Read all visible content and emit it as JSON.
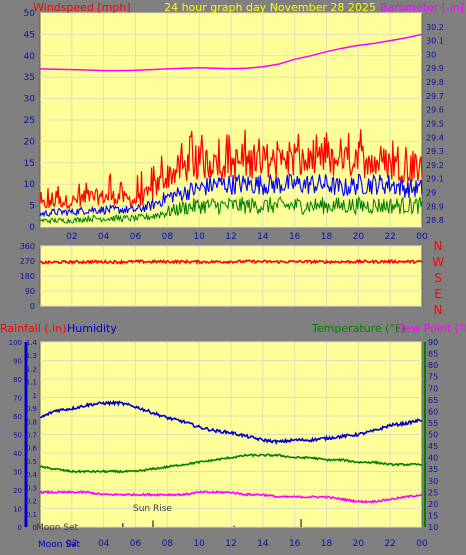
{
  "colors": {
    "background": "#808080",
    "plot_bg": "#ffff99",
    "grid": "#e0e0b8",
    "wind": "#ff0000",
    "gust_blue": "#0000ff",
    "wind_green": "#008000",
    "barometer": "#ff00ff",
    "title_yellow": "#ffff00",
    "humidity": "#0000cc",
    "temperature": "#008000",
    "dewpoint": "#ff00ff",
    "rainfall": "#ff0000",
    "sun_label": "#404040"
  },
  "chart_data": [
    {
      "type": "line",
      "title": "24 hour graph day   November 28 2025",
      "ylabel_left": "Windspeed [mph]",
      "ylabel_right": "Barometer [.in]",
      "x_ticks": [
        "02",
        "04",
        "06",
        "08",
        "10",
        "12",
        "14",
        "16",
        "18",
        "20",
        "22",
        "00"
      ],
      "ylim_left": [
        0,
        50
      ],
      "y_ticks_left": [
        "0",
        "5",
        "10",
        "15",
        "20",
        "25",
        "30",
        "35",
        "40",
        "45",
        "50"
      ],
      "ylim_right": [
        28.75,
        30.3
      ],
      "y_ticks_right": [
        "28.8",
        "28.9",
        "29",
        "29.1",
        "29.2",
        "29.3",
        "29.4",
        "29.5",
        "29.6",
        "29.7",
        "29.8",
        "29.9",
        "30",
        "30.1",
        "30.2"
      ],
      "x_hours": [
        0,
        1,
        2,
        3,
        4,
        5,
        6,
        7,
        8,
        9,
        10,
        11,
        12,
        13,
        14,
        15,
        16,
        17,
        18,
        19,
        20,
        21,
        22,
        23,
        24
      ],
      "series": [
        {
          "role": "wind_gust",
          "values": [
            5,
            6,
            6,
            7,
            7,
            7,
            6,
            8,
            12,
            14,
            15,
            15,
            15,
            15,
            16,
            15,
            15,
            15,
            16,
            15,
            16,
            15,
            15,
            14,
            13
          ],
          "peaks": [
            9,
            10,
            11,
            12,
            13,
            13,
            12,
            15,
            19,
            22,
            23,
            23,
            23,
            23,
            22,
            23,
            22,
            21,
            24,
            22,
            24,
            22,
            22,
            22,
            20
          ]
        },
        {
          "role": "wind_avg",
          "values": [
            3,
            3.5,
            3.5,
            4,
            4,
            4,
            4,
            5,
            7,
            8,
            9,
            10,
            10,
            10,
            10,
            10,
            10,
            10,
            10,
            9,
            10,
            10,
            10,
            9,
            9
          ]
        },
        {
          "role": "wind_low",
          "values": [
            1.5,
            1.5,
            1.5,
            2,
            2,
            2,
            2,
            2.5,
            3.5,
            4.5,
            5,
            5,
            5,
            5,
            5,
            5,
            5,
            5,
            5,
            5,
            5,
            5,
            5,
            5,
            5
          ]
        },
        {
          "role": "barometer",
          "values": [
            29.895,
            29.893,
            29.89,
            29.887,
            29.883,
            29.883,
            29.885,
            29.89,
            29.895,
            29.9,
            29.903,
            29.9,
            29.897,
            29.9,
            29.91,
            29.93,
            29.965,
            29.99,
            30.02,
            30.045,
            30.065,
            30.08,
            30.1,
            30.12,
            30.145
          ]
        }
      ]
    },
    {
      "type": "line",
      "ylabel_right": "NWSEN",
      "compass": [
        "N",
        "W",
        "S",
        "E",
        "N"
      ],
      "x_ticks": [
        "02",
        "04",
        "06",
        "08",
        "10",
        "12",
        "14",
        "16",
        "18",
        "20",
        "22",
        "00"
      ],
      "ylim": [
        0,
        360
      ],
      "y_ticks": [
        "0",
        "90",
        "180",
        "270",
        "360"
      ],
      "series": [
        {
          "role": "wind_direction",
          "values": [
            260,
            262,
            264,
            265,
            265,
            264,
            266,
            265,
            266,
            266,
            265,
            265,
            266,
            267,
            266,
            265,
            266,
            266,
            265,
            265,
            266,
            266,
            267,
            266,
            265
          ]
        }
      ]
    },
    {
      "type": "line",
      "labels": {
        "rainfall": "Rainfall (.in)",
        "humidity": "Humidity",
        "temperature": "Temperature (°F)",
        "dewpoint": "Dew Point (°F)"
      },
      "sun_rise_label": "Sun Rise",
      "moon_set_labels": [
        "Moon Set",
        "Moon Set"
      ],
      "x_ticks": [
        "02",
        "04",
        "06",
        "08",
        "10",
        "12",
        "14",
        "16",
        "18",
        "20",
        "22",
        "00"
      ],
      "ylim_humidity": [
        0,
        100
      ],
      "y_ticks_humidity": [
        "0",
        "10",
        "20",
        "30",
        "40",
        "50",
        "60",
        "70",
        "80",
        "90",
        "100"
      ],
      "ylim_rain": [
        0,
        1.4
      ],
      "y_ticks_rain": [
        "0",
        "0.1",
        "0.2",
        "0.3",
        "0.4",
        "0.5",
        "0.6",
        "0.7",
        "0.8",
        "0.9",
        "1",
        "1.1",
        "1.2",
        "1.3",
        "1.4"
      ],
      "ylim_temp": [
        10,
        90
      ],
      "y_ticks_temp": [
        "10",
        "15",
        "20",
        "25",
        "30",
        "35",
        "40",
        "45",
        "50",
        "55",
        "60",
        "65",
        "70",
        "75",
        "80",
        "85",
        "90"
      ],
      "sun_rise_hour": 7.1,
      "event_marks": [
        {
          "hour": 5.2,
          "height": 0.03
        },
        {
          "hour": 7.1,
          "height": 0.05
        },
        {
          "hour": 12.2,
          "height": 0.01
        },
        {
          "hour": 16.4,
          "height": 0.06
        }
      ],
      "series": [
        {
          "role": "humidity",
          "values": [
            59,
            63,
            64,
            66,
            67,
            67,
            65,
            62,
            59,
            57,
            54,
            52,
            51,
            49,
            47,
            46,
            47,
            47,
            48,
            49,
            50,
            52,
            55,
            56,
            58
          ]
        },
        {
          "role": "temperature",
          "values": [
            36,
            35,
            34,
            34,
            34,
            34,
            34,
            35,
            36,
            37,
            38,
            39,
            40,
            41,
            41,
            41,
            40,
            40,
            39,
            39,
            38,
            38,
            37,
            37,
            37
          ]
        },
        {
          "role": "dewpoint",
          "values": [
            25,
            25,
            25,
            25,
            24,
            24,
            24,
            24,
            24,
            24,
            25,
            25,
            25,
            24,
            24,
            23,
            23,
            23,
            23,
            22,
            21,
            21,
            22,
            23,
            24
          ]
        }
      ]
    }
  ]
}
